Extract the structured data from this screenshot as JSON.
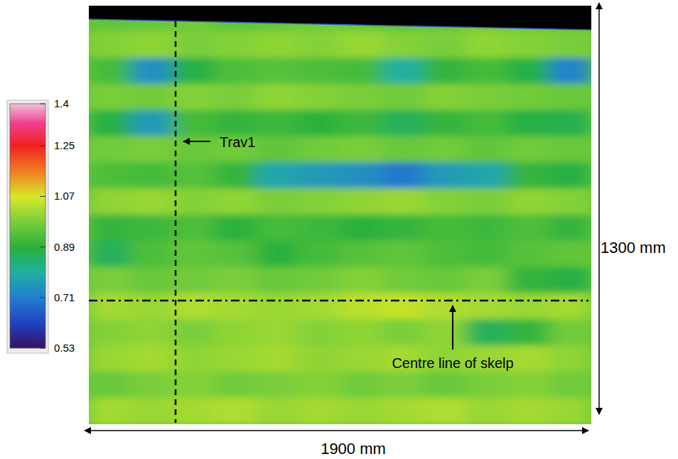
{
  "chart_data": {
    "type": "heatmap",
    "tick_labels": false,
    "annotations": [
      "Trav1",
      "Centre line of skelp"
    ],
    "width_label": "1900 mm",
    "height_label": "1300 mm",
    "colorbar_range": [
      0.53,
      1.4
    ],
    "colorbar_ticks": [
      0.53,
      0.71,
      0.89,
      1.07,
      1.25,
      1.4
    ],
    "cells": [
      [
        0.95,
        0.96,
        0.97,
        0.95,
        0.96,
        0.97,
        0.96,
        0.95,
        0.96,
        0.97,
        0.96,
        0.95
      ],
      [
        0.99,
        1.0,
        0.98,
        0.99,
        1.0,
        0.99,
        1.01,
        0.99,
        0.98,
        1.0,
        0.99,
        0.98
      ],
      [
        0.92,
        0.74,
        0.88,
        0.93,
        0.94,
        0.93,
        0.92,
        0.8,
        0.9,
        0.92,
        0.88,
        0.72
      ],
      [
        0.98,
        0.97,
        0.99,
        0.98,
        1.0,
        0.99,
        0.98,
        0.97,
        0.99,
        0.98,
        0.97,
        0.96
      ],
      [
        0.88,
        0.76,
        0.92,
        0.9,
        0.91,
        0.89,
        0.91,
        0.86,
        0.9,
        0.92,
        0.88,
        0.87
      ],
      [
        0.97,
        0.98,
        0.96,
        0.97,
        0.95,
        0.97,
        0.98,
        0.96,
        0.97,
        0.95,
        0.97,
        0.96
      ],
      [
        0.93,
        0.92,
        0.94,
        0.9,
        0.78,
        0.76,
        0.74,
        0.7,
        0.76,
        0.78,
        0.9,
        0.88
      ],
      [
        1.0,
        1.01,
        0.99,
        1.0,
        0.98,
        0.99,
        1.0,
        1.01,
        0.99,
        0.98,
        1.0,
        0.99
      ],
      [
        0.9,
        0.91,
        0.93,
        0.89,
        0.92,
        0.91,
        0.89,
        0.9,
        0.92,
        0.91,
        0.93,
        0.9
      ],
      [
        0.86,
        0.93,
        0.95,
        0.94,
        0.89,
        0.92,
        0.94,
        0.95,
        0.93,
        0.92,
        0.94,
        0.95
      ],
      [
        0.98,
        0.96,
        0.97,
        0.98,
        0.96,
        0.97,
        0.99,
        0.97,
        0.96,
        0.98,
        0.9,
        0.88
      ],
      [
        1.02,
        1.01,
        1.03,
        1.02,
        1.01,
        1.02,
        1.04,
        1.05,
        1.03,
        1.02,
        1.01,
        1.02
      ],
      [
        0.99,
        1.0,
        0.98,
        1.0,
        1.01,
        0.99,
        1.0,
        0.98,
        1.0,
        0.86,
        0.9,
        0.97
      ],
      [
        1.01,
        1.02,
        1.0,
        1.01,
        1.02,
        1.0,
        1.01,
        1.02,
        1.0,
        1.01,
        1.02,
        1.0
      ],
      [
        0.96,
        0.98,
        0.99,
        0.97,
        0.98,
        0.99,
        0.97,
        0.98,
        0.96,
        0.98,
        0.99,
        0.97
      ],
      [
        1.02,
        1.01,
        1.02,
        1.03,
        1.01,
        1.02,
        1.01,
        1.02,
        1.03,
        1.01,
        1.02,
        1.01
      ]
    ]
  }
}
